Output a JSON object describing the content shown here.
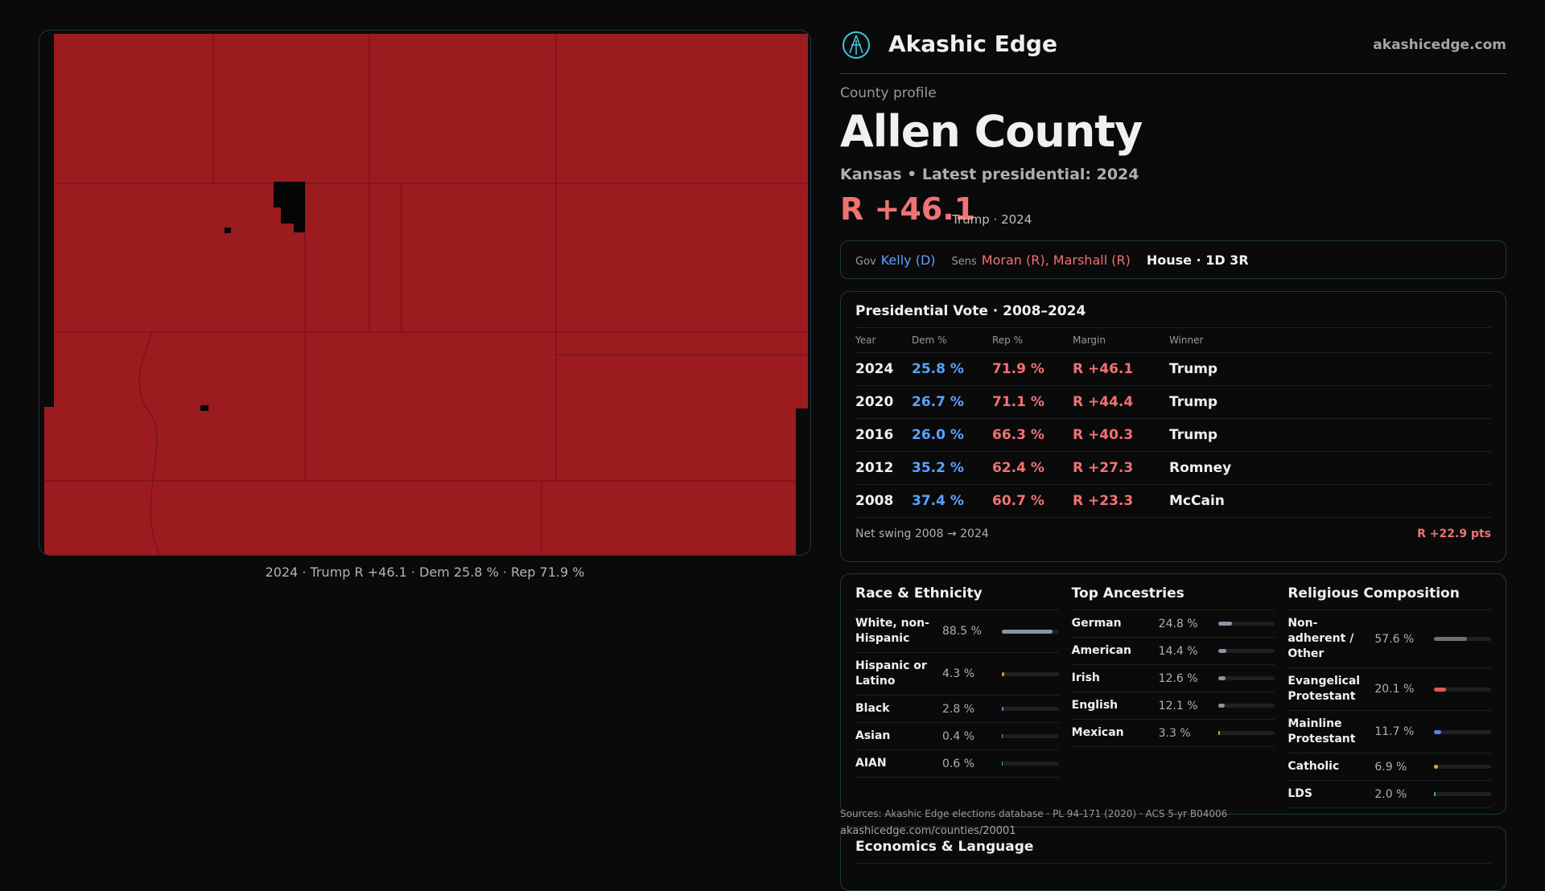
{
  "map": {
    "caption": "2024 · Trump R +46.1 · Dem 25.8 % · Rep 71.9 %",
    "fill_color": "#9c1b1f"
  },
  "header": {
    "brand": "Akashic Edge",
    "site": "akashicedge.com",
    "logo_icon": "akashic-logo-icon"
  },
  "profile": {
    "kicker": "County profile",
    "title": "Allen County",
    "subtitle": "Kansas • Latest presidential: 2024",
    "margin": "R +46.1",
    "margin_sub": "Trump · 2024"
  },
  "officials": {
    "gov_label": "Gov",
    "gov": "Kelly (D)",
    "sens_label": "Sens",
    "sens": "Moran (R), Marshall (R)",
    "house": "House · 1D 3R"
  },
  "presidential": {
    "title": "Presidential Vote · 2008–2024",
    "headers": [
      "Year",
      "Dem %",
      "Rep %",
      "Margin",
      "Winner"
    ],
    "rows": [
      [
        "2024",
        "25.8 %",
        "71.9 %",
        "R +46.1",
        "Trump"
      ],
      [
        "2020",
        "26.7 %",
        "71.1 %",
        "R +44.4",
        "Trump"
      ],
      [
        "2016",
        "26.0 %",
        "66.3 %",
        "R +40.3",
        "Trump"
      ],
      [
        "2012",
        "35.2 %",
        "62.4 %",
        "R +27.3",
        "Romney"
      ],
      [
        "2008",
        "37.4 %",
        "60.7 %",
        "R +23.3",
        "McCain"
      ]
    ],
    "swing_label": "Net swing 2008 → 2024",
    "swing_value": "R +22.9 pts"
  },
  "demographics": [
    {
      "title": "Race & Ethnicity",
      "items": [
        {
          "label": "White, non-Hispanic",
          "value": "88.5 %",
          "pct": 88.5,
          "color": "#8a94a6"
        },
        {
          "label": "Hispanic or Latino",
          "value": "4.3 %",
          "pct": 4.3,
          "color": "#e0a020"
        },
        {
          "label": "Black",
          "value": "2.8 %",
          "pct": 2.8,
          "color": "#8a70d8"
        },
        {
          "label": "Asian",
          "value": "0.4 %",
          "pct": 0.4,
          "color": "#5aa2ff"
        },
        {
          "label": "AIAN",
          "value": "0.6 %",
          "pct": 0.6,
          "color": "#2fb8a0"
        }
      ]
    },
    {
      "title": "Top Ancestries",
      "items": [
        {
          "label": "German",
          "value": "24.8 %",
          "pct": 24.8,
          "color": "#8a94a6"
        },
        {
          "label": "American",
          "value": "14.4 %",
          "pct": 14.4,
          "color": "#8a94a6"
        },
        {
          "label": "Irish",
          "value": "12.6 %",
          "pct": 12.6,
          "color": "#8a94a6"
        },
        {
          "label": "English",
          "value": "12.1 %",
          "pct": 12.1,
          "color": "#8a94a6"
        },
        {
          "label": "Mexican",
          "value": "3.3 %",
          "pct": 3.3,
          "color": "#e0a020"
        }
      ]
    },
    {
      "title": "Religious Composition",
      "items": [
        {
          "label": "Non-adherent / Other",
          "value": "57.6 %",
          "pct": 57.6,
          "color": "#6c727c"
        },
        {
          "label": "Evangelical Protestant",
          "value": "20.1 %",
          "pct": 20.1,
          "color": "#e05a5a"
        },
        {
          "label": "Mainline Protestant",
          "value": "11.7 %",
          "pct": 11.7,
          "color": "#4a8ae0"
        },
        {
          "label": "Catholic",
          "value": "6.9 %",
          "pct": 6.9,
          "color": "#e0b020"
        },
        {
          "label": "LDS",
          "value": "2.0 %",
          "pct": 2.0,
          "color": "#2fb8a0"
        }
      ]
    }
  ],
  "footer": {
    "sources": "Sources: Akashic Edge elections database · PL 94-171 (2020) · ACS 5-yr B04006",
    "url": "akashicedge.com/counties/20001"
  },
  "economics": {
    "title": "Economics & Language"
  }
}
